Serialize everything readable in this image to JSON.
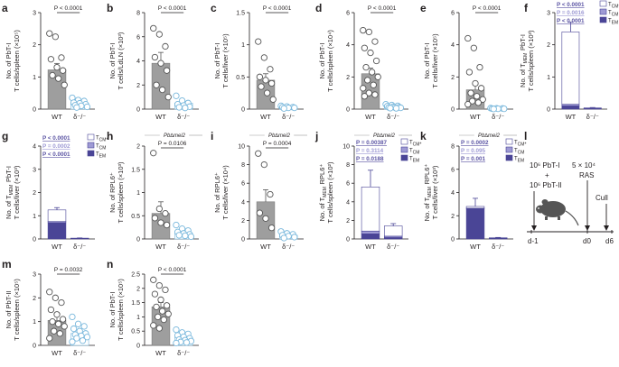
{
  "figure": {
    "panel_letters": [
      "a",
      "b",
      "c",
      "d",
      "e",
      "f",
      "g",
      "h",
      "i",
      "j",
      "k",
      "l",
      "m",
      "n"
    ],
    "colors": {
      "wt_bar": "#9e9e9e",
      "dko_point": "#7ab8dc",
      "tcm_star": "#ffffff",
      "tcm": "#9e9ad4",
      "tem": "#4a4596",
      "pval_blue": "#5b54a3",
      "pval_light": "#9e9ad4",
      "text": "#231f20",
      "mouse": "#555555"
    },
    "schematic": {
      "cells_a": "10⁶ PbT-I",
      "plus": "+",
      "cells_b": "10⁶ PbT-II",
      "dose": "5 × 10⁴",
      "parasite": "RAS",
      "day_transfer": "d-1",
      "day_infect": "d0",
      "cull_label": "Cull",
      "day_cull": "d6"
    }
  },
  "chart_data": [
    {
      "id": "a",
      "type": "bar",
      "categories": [
        "WT",
        "δ⁻/⁻"
      ],
      "ylabel": "No. of PbT-I T cells/spleen (×10⁵)",
      "ylim": [
        0,
        3
      ],
      "yticks": [
        0,
        1,
        2,
        3
      ],
      "values": [
        1.22,
        0.18
      ],
      "err": [
        0.2,
        0.04
      ],
      "wt_points": [
        2.35,
        2.25,
        1.6,
        1.55,
        1.3,
        1.2,
        1.05,
        0.95,
        0.75
      ],
      "ko_points": [
        0.35,
        0.28,
        0.25,
        0.2,
        0.18,
        0.15,
        0.12,
        0.1,
        0.07,
        0.05
      ],
      "pvalues": [
        "P < 0.0001"
      ],
      "subtitle": ""
    },
    {
      "id": "b",
      "type": "bar",
      "categories": [
        "WT",
        "δ⁻/⁻"
      ],
      "ylabel": "No. of PbT-I T cells/LdLN (×10³)",
      "ylim": [
        0,
        8
      ],
      "yticks": [
        0,
        2,
        4,
        6,
        8
      ],
      "values": [
        3.8,
        0.5
      ],
      "err": [
        0.9,
        0.15
      ],
      "wt_points": [
        6.7,
        6.2,
        5.2,
        4.3,
        3.8,
        3.2,
        2.0,
        1.6,
        1.0
      ],
      "ko_points": [
        1.1,
        0.7,
        0.5,
        0.4,
        0.3,
        0.2,
        0.15,
        0.1
      ],
      "pvalues": [
        "P < 0.0001"
      ],
      "subtitle": ""
    },
    {
      "id": "c",
      "type": "bar",
      "categories": [
        "WT",
        "δ⁻/⁻"
      ],
      "ylabel": "No. of PbT-I T cells/liver (×10⁵)",
      "ylim": [
        0,
        1.5
      ],
      "yticks": [
        0,
        0.5,
        1.0,
        1.5
      ],
      "values": [
        0.45,
        0.03
      ],
      "err": [
        0.1,
        0.01
      ],
      "wt_points": [
        1.05,
        0.8,
        0.62,
        0.5,
        0.45,
        0.4,
        0.35,
        0.25,
        0.15
      ],
      "ko_points": [
        0.05,
        0.04,
        0.03,
        0.03,
        0.02,
        0.02,
        0.01
      ],
      "pvalues": [
        "P < 0.0001"
      ],
      "subtitle": ""
    },
    {
      "id": "d",
      "type": "bar",
      "categories": [
        "WT",
        "δ⁻/⁻"
      ],
      "ylabel": "No. of PbT-I T cells/spleen (×10⁴)",
      "ylim": [
        0,
        6
      ],
      "yticks": [
        0,
        2,
        4,
        6
      ],
      "values": [
        2.2,
        0.15
      ],
      "err": [
        0.35,
        0.03
      ],
      "wt_points": [
        4.9,
        4.8,
        4.2,
        3.8,
        3.5,
        3.0,
        2.6,
        2.3,
        2.0,
        1.8,
        1.5,
        1.3,
        1.0,
        0.9,
        0.8
      ],
      "ko_points": [
        0.3,
        0.25,
        0.2,
        0.18,
        0.15,
        0.12,
        0.1,
        0.1,
        0.08,
        0.06,
        0.05
      ],
      "pvalues": [
        "P < 0.0001"
      ],
      "subtitle": ""
    },
    {
      "id": "e",
      "type": "bar",
      "categories": [
        "WT",
        "δ⁻/⁻"
      ],
      "ylabel": "No. of PbT-I T cells/liver (×10⁵)",
      "ylim": [
        0,
        6
      ],
      "yticks": [
        0,
        2,
        4,
        6
      ],
      "values": [
        1.2,
        0.03
      ],
      "err": [
        0.35,
        0.01
      ],
      "wt_points": [
        4.4,
        3.8,
        2.6,
        2.3,
        1.6,
        1.3,
        1.0,
        0.8,
        0.6,
        0.5,
        0.4,
        0.3
      ],
      "ko_points": [
        0.06,
        0.05,
        0.04,
        0.03,
        0.02,
        0.02,
        0.01
      ],
      "pvalues": [
        "P < 0.0001"
      ],
      "subtitle": ""
    },
    {
      "id": "f",
      "type": "stacked-bar",
      "categories": [
        "WT",
        "δ⁻/⁻"
      ],
      "ylabel": "No. of T_MEM PbT-I T cells/spleen (×10³)",
      "ylim": [
        0,
        3
      ],
      "yticks": [
        0,
        1,
        2,
        3
      ],
      "series": [
        {
          "name": "T_EM",
          "values": [
            0.1,
            0.01
          ]
        },
        {
          "name": "T_CM",
          "values": [
            0.05,
            0.01
          ]
        },
        {
          "name": "T_CM*",
          "values": [
            2.25,
            0.02
          ]
        }
      ],
      "err": [
        0.3,
        0.01
      ],
      "pvalues": [
        "P < 0.0001",
        "P = 0.0016",
        "P < 0.0001"
      ],
      "legend": [
        "T_CM*",
        "T_CM",
        "T_EM"
      ],
      "subtitle": ""
    },
    {
      "id": "g",
      "type": "stacked-bar",
      "categories": [
        "WT",
        "δ⁻/⁻"
      ],
      "ylabel": "No. of T_MEM PbT-I T cells/liver (×10³)",
      "ylim": [
        0,
        4
      ],
      "yticks": [
        0,
        1,
        2,
        3,
        4
      ],
      "series": [
        {
          "name": "T_EM",
          "values": [
            0.7,
            0.02
          ]
        },
        {
          "name": "T_CM",
          "values": [
            0.05,
            0.005
          ]
        },
        {
          "name": "T_CM*",
          "values": [
            0.5,
            0.01
          ]
        }
      ],
      "err": [
        0.1,
        0.01
      ],
      "pvalues": [
        "P < 0.0001",
        "P = 0.0002",
        "P < 0.0001"
      ],
      "legend": [
        "T_CM*",
        "T_CM",
        "T_EM"
      ],
      "subtitle": ""
    },
    {
      "id": "h",
      "type": "bar",
      "categories": [
        "WT",
        "δ⁻/⁻"
      ],
      "ylabel": "No. of RPL6⁺ T cells/spleen (×10³)",
      "ylim": [
        0,
        2
      ],
      "yticks": [
        0,
        0.5,
        1.0,
        1.5,
        2.0
      ],
      "values": [
        0.55,
        0.12
      ],
      "err": [
        0.25,
        0.03
      ],
      "wt_points": [
        1.85,
        0.65,
        0.55,
        0.45,
        0.35,
        0.3
      ],
      "ko_points": [
        0.3,
        0.22,
        0.18,
        0.15,
        0.12,
        0.1,
        0.08,
        0.07,
        0.05
      ],
      "pvalues": [
        "P = 0.0106"
      ],
      "subtitle": "Pb∆mei2"
    },
    {
      "id": "i",
      "type": "bar",
      "categories": [
        "WT",
        "δ⁻/⁻"
      ],
      "ylabel": "No. of RPL6⁺ T cells/liver (×10⁴)",
      "ylim": [
        0,
        10
      ],
      "yticks": [
        0,
        2,
        4,
        6,
        8,
        10
      ],
      "values": [
        4.0,
        0.4
      ],
      "err": [
        1.3,
        0.1
      ],
      "wt_points": [
        9.2,
        8.0,
        4.8,
        2.8,
        2.2,
        1.2
      ],
      "ko_points": [
        0.8,
        0.6,
        0.5,
        0.4,
        0.3,
        0.2,
        0.1
      ],
      "pvalues": [
        "P = 0.0004"
      ],
      "subtitle": "Pb∆mei2"
    },
    {
      "id": "j",
      "type": "stacked-bar",
      "categories": [
        "WT",
        "δ⁻/⁻"
      ],
      "ylabel": "No. of T_MEM RPL6⁺ T cells/spleen (×10²)",
      "ylim": [
        0,
        10
      ],
      "yticks": [
        0,
        2,
        4,
        6,
        8,
        10
      ],
      "series": [
        {
          "name": "T_EM",
          "values": [
            0.55,
            0.15
          ]
        },
        {
          "name": "T_CM",
          "values": [
            0.3,
            0.15
          ]
        },
        {
          "name": "T_CM*",
          "values": [
            4.75,
            1.1
          ]
        }
      ],
      "err": [
        1.8,
        0.25
      ],
      "pvalues": [
        "P = 0.00387",
        "P = 0.3114",
        "P = 0.0188"
      ],
      "legend": [
        "T_CM*",
        "T_CM",
        "T_EM"
      ],
      "subtitle": "Pb∆mei2"
    },
    {
      "id": "k",
      "type": "stacked-bar",
      "categories": [
        "WT",
        "δ⁻/⁻"
      ],
      "ylabel": "No. of T_MEM RPL6⁺ T cells/liver (×10³)",
      "ylim": [
        0,
        8
      ],
      "yticks": [
        0,
        2,
        4,
        6,
        8
      ],
      "series": [
        {
          "name": "T_EM",
          "values": [
            2.6,
            0.08
          ]
        },
        {
          "name": "T_CM",
          "values": [
            0.05,
            0.01
          ]
        },
        {
          "name": "T_CM*",
          "values": [
            0.15,
            0.01
          ]
        }
      ],
      "err": [
        0.7,
        0.03
      ],
      "pvalues": [
        "P = 0.0002",
        "P = 0.095",
        "P = 0.001"
      ],
      "legend": [
        "T_CM*",
        "T_CM",
        "T_EM"
      ],
      "subtitle": "Pb∆mei2"
    },
    {
      "id": "m",
      "type": "bar",
      "categories": [
        "WT",
        "δ⁻/⁻"
      ],
      "ylabel": "No. of PbT-II T cells/spleen (×10⁵)",
      "ylim": [
        0,
        3
      ],
      "yticks": [
        0,
        1,
        2,
        3
      ],
      "values": [
        1.05,
        0.5
      ],
      "err": [
        0.2,
        0.1
      ],
      "wt_points": [
        2.25,
        2.0,
        1.8,
        1.5,
        1.3,
        1.1,
        1.0,
        0.9,
        0.8,
        0.6,
        0.5,
        0.3
      ],
      "ko_points": [
        1.2,
        0.9,
        0.8,
        0.7,
        0.6,
        0.5,
        0.45,
        0.4,
        0.35,
        0.3,
        0.2,
        0.15
      ],
      "pvalues": [
        "P = 0.0032"
      ],
      "subtitle": ""
    },
    {
      "id": "n",
      "type": "bar",
      "categories": [
        "WT",
        "δ⁻/⁻"
      ],
      "ylabel": "No. of PbT-I T cells/spleen (×10⁵)",
      "ylim": [
        0,
        2.5
      ],
      "yticks": [
        0,
        0.5,
        1.0,
        1.5,
        2.0,
        2.5
      ],
      "values": [
        1.35,
        0.28
      ],
      "err": [
        0.15,
        0.05
      ],
      "wt_points": [
        2.3,
        2.1,
        1.95,
        1.8,
        1.6,
        1.4,
        1.35,
        1.2,
        1.1,
        1.0,
        0.9,
        0.7,
        0.6
      ],
      "ko_points": [
        0.55,
        0.45,
        0.4,
        0.35,
        0.3,
        0.25,
        0.2,
        0.18,
        0.15,
        0.12,
        0.1,
        0.08
      ],
      "pvalues": [
        "P < 0.0001"
      ],
      "subtitle": ""
    }
  ]
}
